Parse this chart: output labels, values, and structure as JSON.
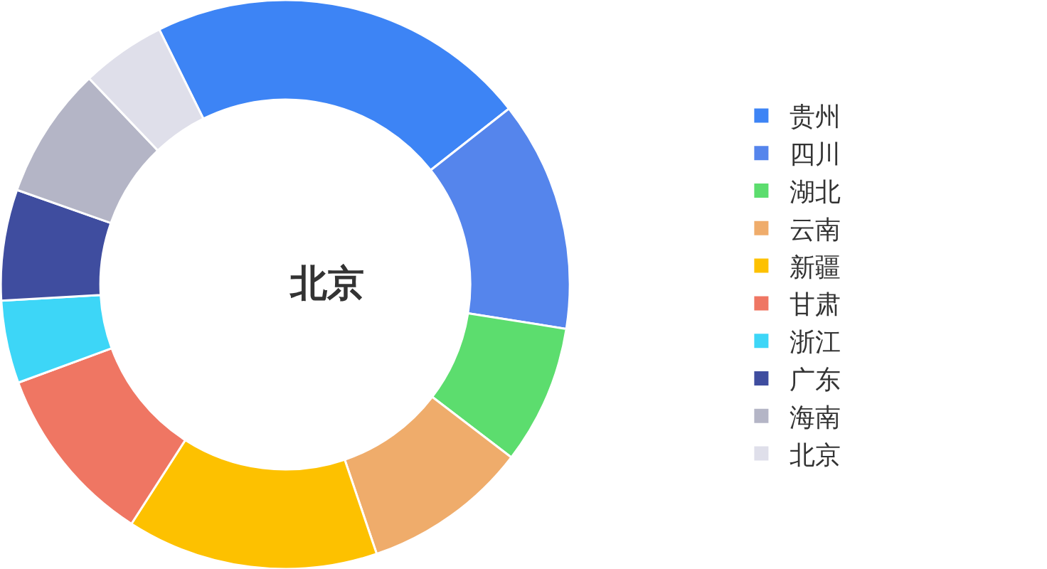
{
  "chart_data": {
    "type": "donut",
    "title": "北京",
    "categories": [
      "贵州",
      "四川",
      "湖北",
      "云南",
      "新疆",
      "甘肃",
      "浙江",
      "广东",
      "海南",
      "北京"
    ],
    "values": [
      21.7,
      13.1,
      7.9,
      9.4,
      14.3,
      10.3,
      4.7,
      6.3,
      7.5,
      4.8
    ],
    "colors": [
      "#3d84f5",
      "#5585ec",
      "#5cdd6e",
      "#efac6b",
      "#fdc100",
      "#ef7663",
      "#3dd6f7",
      "#3f4d9f",
      "#b4b5c6",
      "#dfdfea"
    ],
    "legend": "right"
  }
}
